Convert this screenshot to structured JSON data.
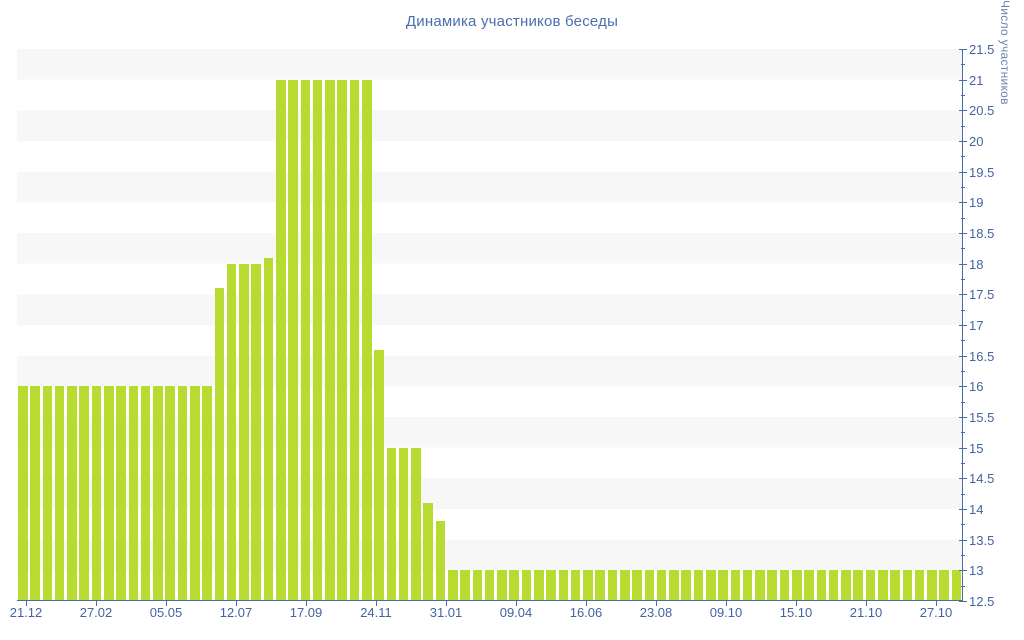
{
  "chart_data": {
    "type": "bar",
    "title": "Динамика участников беседы",
    "ylabel": "Число участников",
    "xlabel": "",
    "ylim": [
      12.5,
      21.5
    ],
    "y_tick_step": 0.5,
    "y_minor_tick_step": 0.25,
    "legend": "none",
    "grid": "horizontal-bands",
    "x_tick_labels": [
      "21.12",
      "27.02",
      "05.05",
      "12.07",
      "17.09",
      "24.11",
      "31.01",
      "09.04",
      "16.06",
      "23.08",
      "09.10",
      "15.10",
      "21.10",
      "27.10"
    ],
    "values": [
      16,
      16,
      16,
      16,
      16,
      16,
      16,
      16,
      16,
      16,
      16,
      16,
      16,
      16,
      16,
      16,
      17.6,
      18,
      18,
      18,
      18.1,
      21,
      21,
      21,
      21,
      21,
      21,
      21,
      21,
      16.6,
      15,
      15,
      15,
      14.1,
      13.8,
      13,
      13,
      13,
      13,
      13,
      13,
      13,
      13,
      13,
      13,
      13,
      13,
      13,
      13,
      13,
      13,
      13,
      13,
      13,
      13,
      13,
      13,
      13,
      13,
      13,
      13,
      13,
      13,
      13,
      13,
      13,
      13,
      13,
      13,
      13,
      13,
      13,
      13,
      13,
      13,
      13,
      13
    ],
    "colors": {
      "bar": "#b8db32",
      "stripe": "#f7f7f7",
      "axis": "#4a6da9",
      "title": "#4a6fad",
      "tick_label": "#44639f",
      "y_axis_title": "#6d84ad"
    }
  }
}
